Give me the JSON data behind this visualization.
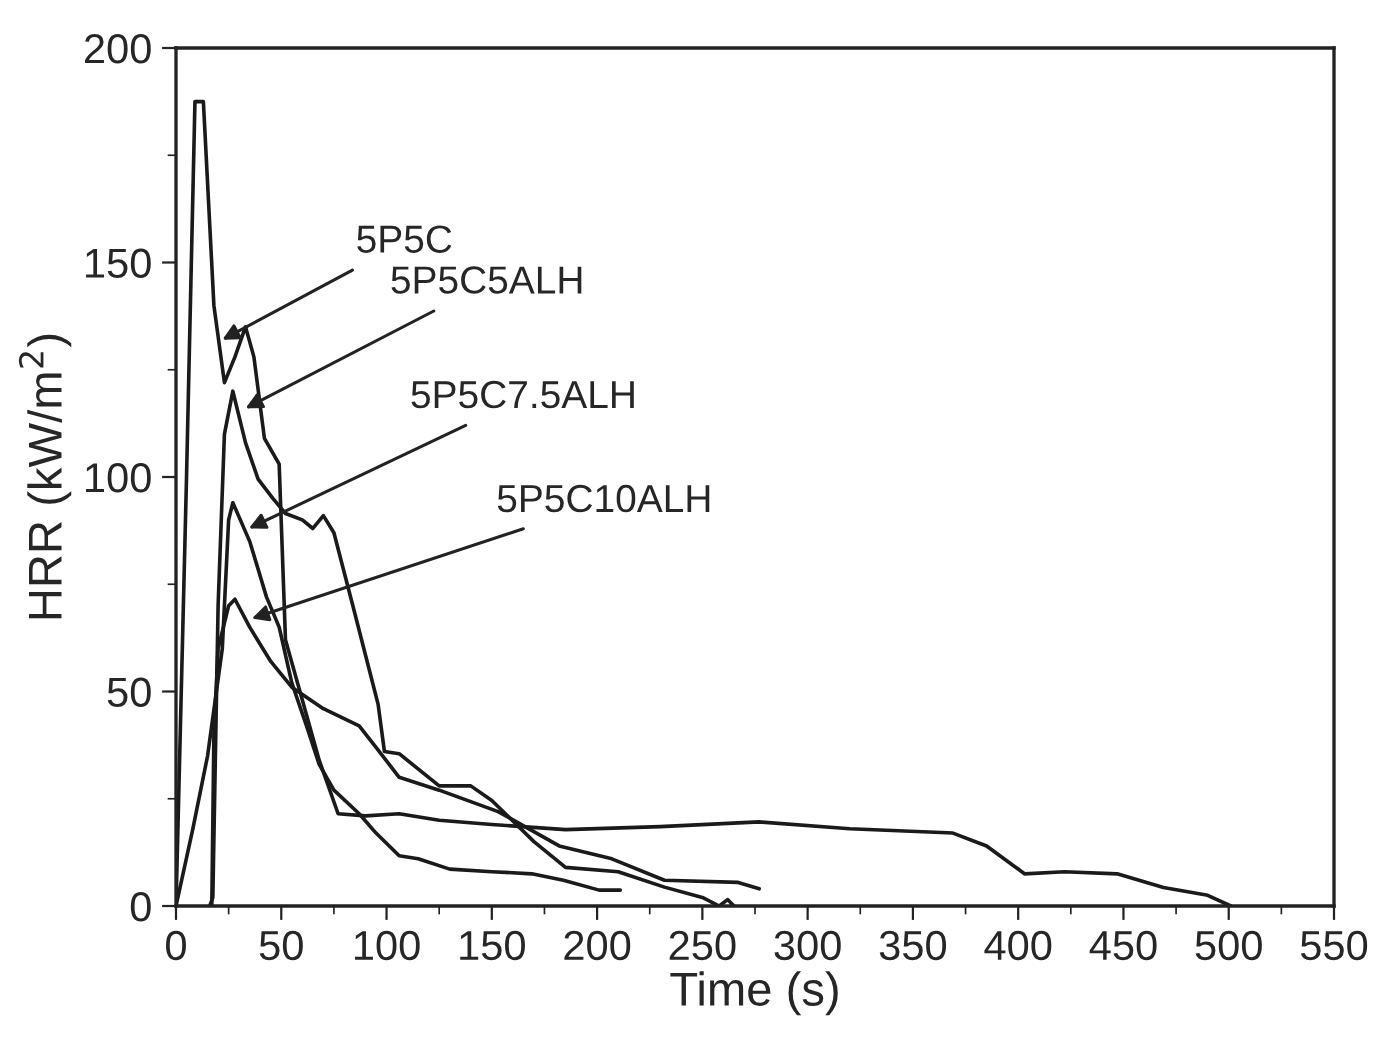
{
  "chart_data": {
    "type": "line",
    "xlabel": "Time (s)",
    "ylabel": "HRR (kW/m$^{2}$)",
    "xlim": [
      0,
      550
    ],
    "xticks": [
      0,
      50,
      100,
      150,
      200,
      250,
      300,
      350,
      400,
      450,
      500,
      550
    ],
    "ylim": [
      0,
      200
    ],
    "yticks": [
      0,
      50,
      100,
      150,
      200
    ],
    "grid": false,
    "legend": false,
    "marker": "none",
    "line_style": "solid",
    "series": [
      {
        "color": "#1a1a1a",
        "x": [
          0,
          5,
          9,
          13,
          18,
          23,
          28,
          33,
          37,
          42,
          49,
          52,
          60,
          68,
          77,
          90,
          106,
          125,
          150,
          185,
          230,
          277,
          320,
          369,
          385,
          403,
          422,
          447,
          469,
          490,
          501
        ],
        "values": [
          0,
          100,
          187.5,
          187.5,
          140,
          122,
          128,
          135,
          128,
          109,
          103,
          62,
          48,
          34,
          21.5,
          21,
          21.5,
          20,
          19,
          17.8,
          18.5,
          19.6,
          18,
          17,
          14,
          7.5,
          8,
          7.5,
          4.3,
          2.5,
          0
        ]
      },
      {
        "color": "#1a1a1a",
        "x": [
          16,
          17.5,
          20,
          23,
          27,
          33,
          39,
          46,
          52,
          60,
          65,
          70,
          75,
          84,
          96,
          99,
          106,
          125,
          140,
          150,
          170,
          185,
          210,
          232,
          250,
          258,
          262,
          265
        ],
        "values": [
          0,
          2,
          70,
          110,
          120,
          108,
          99.5,
          95,
          91.5,
          90,
          88,
          91,
          87,
          70,
          47,
          36,
          35.5,
          28,
          28,
          24.6,
          15,
          9,
          8,
          4.4,
          2,
          0,
          1.5,
          0
        ]
      },
      {
        "color": "#1a1a1a",
        "x": [
          0,
          8,
          15,
          22,
          25,
          27,
          35,
          43,
          49,
          55,
          62,
          68,
          75,
          87,
          95,
          106,
          115,
          130,
          150,
          169,
          184,
          201,
          211
        ],
        "values": [
          0,
          18,
          35,
          60,
          90,
          94,
          85,
          72,
          65,
          52,
          42,
          33,
          27,
          21.5,
          17,
          11.7,
          11,
          8.6,
          8,
          7.5,
          6,
          3.7,
          3.7
        ]
      },
      {
        "color": "#1a1a1a",
        "x": [
          17,
          18,
          20,
          25,
          28,
          35,
          45,
          55,
          70,
          87,
          95,
          106,
          125,
          153,
          182,
          207,
          232,
          267,
          277
        ],
        "values": [
          0,
          40,
          60,
          70,
          71.5,
          65,
          57,
          51,
          46,
          42,
          37,
          30,
          27,
          22,
          14,
          11,
          6,
          5.5,
          4
        ]
      }
    ],
    "annotations": [
      {
        "text": "5P5C",
        "x": 22,
        "y": 132
      },
      {
        "text": "5P5C5ALH",
        "x": 33,
        "y": 116
      },
      {
        "text": "5P5C7.5ALH",
        "x": 34.6,
        "y": 88
      },
      {
        "text": "5P5C10ALH",
        "x": 36,
        "y": 67
      }
    ]
  }
}
